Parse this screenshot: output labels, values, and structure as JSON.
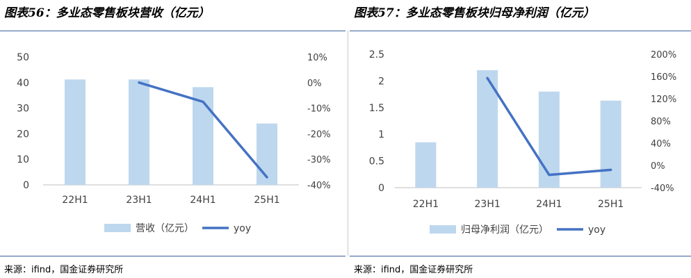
{
  "chart_data": [
    {
      "type": "bar",
      "title": "图表56：多业态零售板块营收（亿元）",
      "categories": [
        "22H1",
        "23H1",
        "24H1",
        "25H1"
      ],
      "series": [
        {
          "name": "营收（亿元）",
          "type": "bar",
          "axis": "left",
          "values": [
            41.2,
            41.2,
            38.2,
            24.0
          ]
        },
        {
          "name": "yoy",
          "type": "line",
          "axis": "right",
          "values": [
            null,
            0.0,
            -7.5,
            -37.0
          ]
        }
      ],
      "ylim": [
        0,
        50
      ],
      "yticks": [
        "0",
        "10",
        "20",
        "30",
        "40",
        "50"
      ],
      "y2lim": [
        -40,
        10
      ],
      "y2ticks": [
        "-40%",
        "-30%",
        "-20%",
        "-10%",
        "0%",
        "10%"
      ],
      "bar_color": "#bdd7ee",
      "line_color": "#4472c4",
      "legend": "bottom",
      "grid": false,
      "source": "来源：ifind，国金证券研究所"
    },
    {
      "type": "bar",
      "title": "图表57：多业态零售板块归母净利润（亿元）",
      "categories": [
        "22H1",
        "23H1",
        "24H1",
        "25H1"
      ],
      "series": [
        {
          "name": "归母净利润（亿元）",
          "type": "bar",
          "axis": "left",
          "values": [
            0.85,
            2.2,
            1.8,
            1.63
          ]
        },
        {
          "name": "yoy",
          "type": "line",
          "axis": "right",
          "values": [
            null,
            157,
            -17,
            -8
          ]
        }
      ],
      "ylim": [
        0,
        2.5
      ],
      "yticks": [
        "0",
        "0.5",
        "1",
        "1.5",
        "2",
        "2.5"
      ],
      "y2lim": [
        -40,
        200
      ],
      "y2ticks": [
        "-40%",
        "0%",
        "40%",
        "80%",
        "120%",
        "160%",
        "200%"
      ],
      "bar_color": "#bdd7ee",
      "line_color": "#4472c4",
      "legend": "bottom",
      "grid": false,
      "source": "来源：ifind，国金证券研究所"
    }
  ]
}
